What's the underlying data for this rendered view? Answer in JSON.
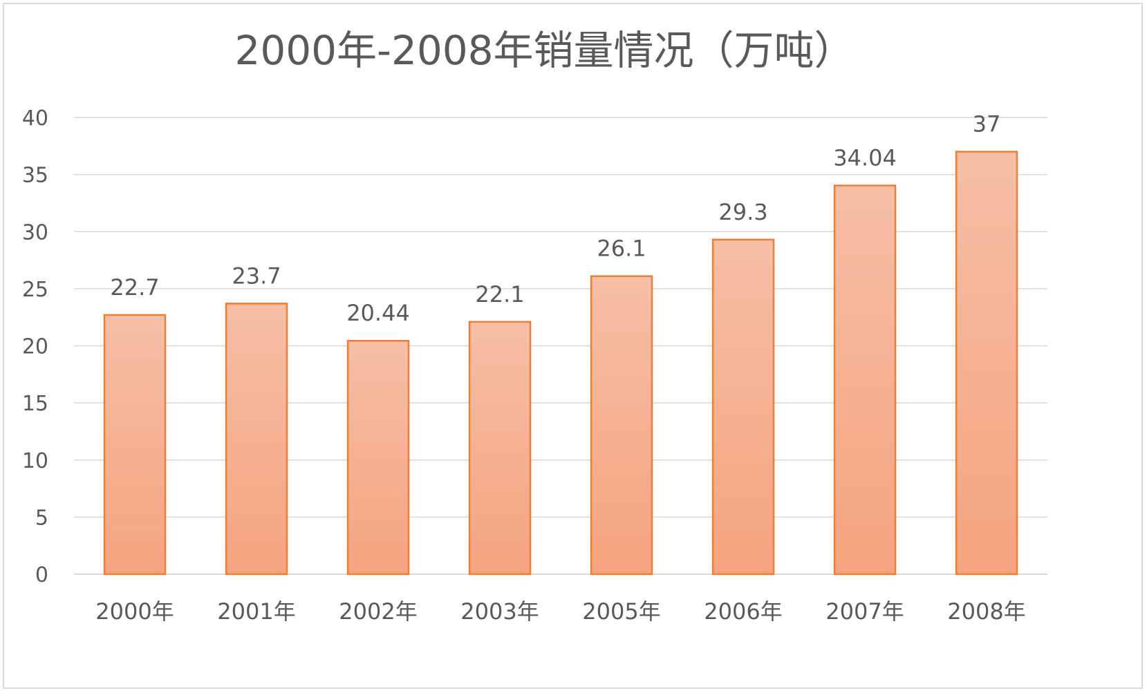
{
  "chart_data": {
    "type": "bar",
    "title": "2000年-2008年销量情况（万吨）",
    "categories": [
      "2000年",
      "2001年",
      "2002年",
      "2003年",
      "2005年",
      "2006年",
      "2007年",
      "2008年"
    ],
    "values": [
      22.7,
      23.7,
      20.44,
      22.1,
      26.1,
      29.3,
      34.04,
      37
    ],
    "data_labels": [
      "22.7",
      "23.7",
      "20.44",
      "22.1",
      "26.1",
      "29.3",
      "34.04",
      "37"
    ],
    "ylim": [
      0,
      40
    ],
    "yticks": [
      0,
      5,
      10,
      15,
      20,
      25,
      30,
      35,
      40
    ],
    "grid": true,
    "legend": "none",
    "colors": {
      "bar_fill_top": "#f6bea6",
      "bar_fill_bottom": "#f5a47e",
      "bar_stroke": "#ed7d31",
      "gridline": "#d9d9d9",
      "text": "#595959"
    }
  }
}
